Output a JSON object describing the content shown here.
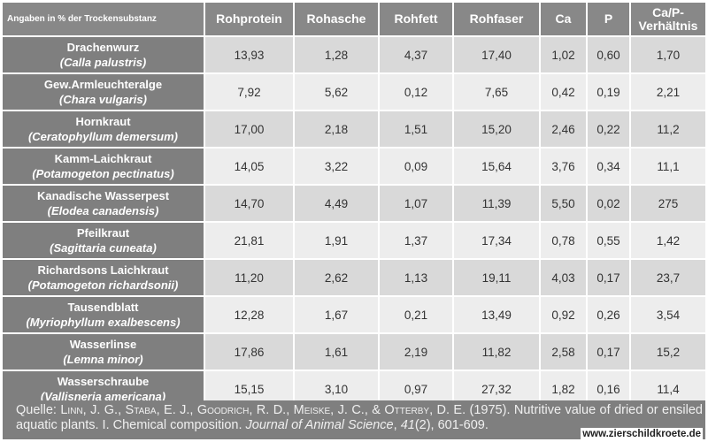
{
  "table": {
    "header": {
      "label": "Angaben in % der Trockensubstanz",
      "columns": [
        "Rohprotein",
        "Rohasche",
        "Rohfett",
        "Rohfaser",
        "Ca",
        "P",
        "Ca/P-Verhältnis"
      ]
    },
    "rows": [
      {
        "common": "Drachenwurz",
        "latin": "(Calla palustris)",
        "values": [
          "13,93",
          "1,28",
          "4,37",
          "17,40",
          "1,02",
          "0,60",
          "1,70"
        ]
      },
      {
        "common": "Gew.Armleuchteralge",
        "latin": "(Chara vulgaris)",
        "values": [
          "7,92",
          "5,62",
          "0,12",
          "7,65",
          "0,42",
          "0,19",
          "2,21"
        ]
      },
      {
        "common": "Hornkraut",
        "latin": "(Ceratophyllum demersum)",
        "values": [
          "17,00",
          "2,18",
          "1,51",
          "15,20",
          "2,46",
          "0,22",
          "11,2"
        ]
      },
      {
        "common": "Kamm-Laichkraut",
        "latin": "(Potamogeton pectinatus)",
        "values": [
          "14,05",
          "3,22",
          "0,09",
          "15,64",
          "3,76",
          "0,34",
          "11,1"
        ]
      },
      {
        "common": "Kanadische Wasserpest",
        "latin": "(Elodea canadensis)",
        "values": [
          "14,70",
          "4,49",
          "1,07",
          "11,39",
          "5,50",
          "0,02",
          "275"
        ]
      },
      {
        "common": "Pfeilkraut",
        "latin": "(Sagittaria cuneata)",
        "values": [
          "21,81",
          "1,91",
          "1,37",
          "17,34",
          "0,78",
          "0,55",
          "1,42"
        ]
      },
      {
        "common": "Richardsons Laichkraut",
        "latin": "(Potamogeton richardsonii)",
        "values": [
          "11,20",
          "2,62",
          "1,13",
          "19,11",
          "4,03",
          "0,17",
          "23,7"
        ]
      },
      {
        "common": "Tausendblatt",
        "latin": "(Myriophyllum exalbescens)",
        "values": [
          "12,28",
          "1,67",
          "0,21",
          "13,49",
          "0,92",
          "0,26",
          "3,54"
        ]
      },
      {
        "common": "Wasserlinse",
        "latin": "(Lemna minor)",
        "values": [
          "17,86",
          "1,61",
          "2,19",
          "11,82",
          "2,58",
          "0,17",
          "15,2"
        ]
      },
      {
        "common": "Wasserschraube",
        "latin": "(Vallisneria americana)",
        "values": [
          "15,15",
          "3,10",
          "0,97",
          "27,32",
          "1,82",
          "0,16",
          "11,4"
        ]
      }
    ]
  },
  "citation": {
    "prefix": "Quelle: ",
    "authors": "Linn, J. G., Staba, E. J., Goodrich, R. D., Meiske, J. C., & Otterby, D. E.",
    "year_title": " (1975). Nutritive value of dried or ensiled aquatic plants. I. Chemical composition. ",
    "journal": "Journal of Animal Science",
    "volume_sep": ", ",
    "volume": "41",
    "issue": "(2), 601-609."
  },
  "watermark": "www.zierschildkroete.de",
  "colors": {
    "header_bg": "#888888",
    "name_bg": "#7f7f7f",
    "row_odd_bg": "#d9d9d9",
    "row_even_bg": "#ededed",
    "footer_bg": "#7f7f7f"
  }
}
